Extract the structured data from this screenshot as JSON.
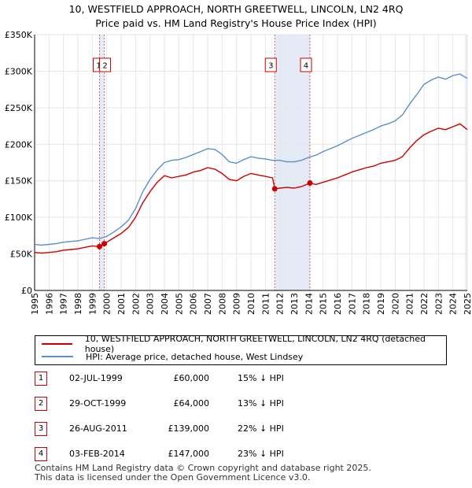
{
  "header": {
    "title_line1": "10, WESTFIELD APPROACH, NORTH GREETWELL, LINCOLN, LN2 4RQ",
    "title_line2": "Price paid vs. HM Land Registry's House Price Index (HPI)"
  },
  "chart_data": {
    "type": "line",
    "ylim": [
      0,
      350000
    ],
    "xlim": [
      1995,
      2025
    ],
    "yticks": [
      0,
      50000,
      100000,
      150000,
      200000,
      250000,
      300000,
      350000
    ],
    "ytick_labels": [
      "£0",
      "£50K",
      "£100K",
      "£150K",
      "£200K",
      "£250K",
      "£300K",
      "£350K"
    ],
    "xticks": [
      1995,
      1996,
      1997,
      1998,
      1999,
      2000,
      2001,
      2002,
      2003,
      2004,
      2005,
      2006,
      2007,
      2008,
      2009,
      2010,
      2011,
      2012,
      2013,
      2014,
      2015,
      2016,
      2017,
      2018,
      2019,
      2020,
      2021,
      2022,
      2023,
      2024,
      2025
    ],
    "grid": true,
    "colors": {
      "property": "#cc0000",
      "hpi": "#5b8fcb",
      "band": "#dde6f5",
      "marker_line": "#cc6666"
    },
    "series": [
      {
        "name": "10, WESTFIELD APPROACH, NORTH GREETWELL, LINCOLN, LN2 4RQ (detached house)",
        "x": [
          1995.0,
          1995.5,
          1996.0,
          1996.5,
          1997.0,
          1997.5,
          1998.0,
          1998.5,
          1999.0,
          1999.5,
          1999.83,
          2000.0,
          2000.5,
          2001.0,
          2001.5,
          2002.0,
          2002.5,
          2003.0,
          2003.5,
          2004.0,
          2004.5,
          2005.0,
          2005.5,
          2006.0,
          2006.5,
          2007.0,
          2007.5,
          2008.0,
          2008.5,
          2009.0,
          2009.5,
          2010.0,
          2010.5,
          2011.0,
          2011.5,
          2011.65,
          2012.0,
          2012.5,
          2013.0,
          2013.5,
          2014.09,
          2014.5,
          2015.0,
          2015.5,
          2016.0,
          2016.5,
          2017.0,
          2017.5,
          2018.0,
          2018.5,
          2019.0,
          2019.5,
          2020.0,
          2020.5,
          2021.0,
          2021.5,
          2022.0,
          2022.5,
          2023.0,
          2023.5,
          2024.0,
          2024.5,
          2025.0
        ],
        "values": [
          52000,
          51000,
          52000,
          53000,
          55000,
          56000,
          57000,
          59000,
          61000,
          60000,
          64000,
          66000,
          72000,
          78000,
          86000,
          100000,
          120000,
          135000,
          148000,
          157000,
          154000,
          156000,
          158000,
          162000,
          164000,
          168000,
          166000,
          160000,
          152000,
          150000,
          156000,
          160000,
          158000,
          156000,
          154000,
          139000,
          140000,
          141000,
          140000,
          142000,
          147000,
          145000,
          148000,
          151000,
          154000,
          158000,
          162000,
          165000,
          168000,
          170000,
          174000,
          176000,
          178000,
          183000,
          195000,
          205000,
          213000,
          218000,
          222000,
          220000,
          224000,
          228000,
          220000
        ]
      },
      {
        "name": "HPI: Average price, detached house, West Lindsey",
        "x": [
          1995.0,
          1995.5,
          1996.0,
          1996.5,
          1997.0,
          1997.5,
          1998.0,
          1998.5,
          1999.0,
          1999.5,
          2000.0,
          2000.5,
          2001.0,
          2001.5,
          2002.0,
          2002.5,
          2003.0,
          2003.5,
          2004.0,
          2004.5,
          2005.0,
          2005.5,
          2006.0,
          2006.5,
          2007.0,
          2007.5,
          2008.0,
          2008.5,
          2009.0,
          2009.5,
          2010.0,
          2010.5,
          2011.0,
          2011.5,
          2012.0,
          2012.5,
          2013.0,
          2013.5,
          2014.0,
          2014.5,
          2015.0,
          2015.5,
          2016.0,
          2016.5,
          2017.0,
          2017.5,
          2018.0,
          2018.5,
          2019.0,
          2019.5,
          2020.0,
          2020.5,
          2021.0,
          2021.5,
          2022.0,
          2022.5,
          2023.0,
          2023.5,
          2024.0,
          2024.5,
          2025.0
        ],
        "values": [
          63000,
          62000,
          63000,
          64000,
          66000,
          67000,
          68000,
          70000,
          72000,
          71000,
          74000,
          80000,
          87000,
          96000,
          112000,
          135000,
          152000,
          165000,
          175000,
          178000,
          179000,
          182000,
          186000,
          190000,
          194000,
          193000,
          186000,
          176000,
          174000,
          179000,
          183000,
          181000,
          180000,
          178000,
          178000,
          176000,
          176000,
          178000,
          182000,
          185000,
          190000,
          194000,
          198000,
          203000,
          208000,
          212000,
          216000,
          220000,
          225000,
          228000,
          232000,
          240000,
          255000,
          268000,
          282000,
          288000,
          292000,
          289000,
          294000,
          296000,
          290000
        ]
      }
    ],
    "purchases": [
      {
        "label": "1",
        "x": 1999.5,
        "value": 60000
      },
      {
        "label": "2",
        "x": 1999.83,
        "value": 64000
      },
      {
        "label": "3",
        "x": 2011.65,
        "value": 139000
      },
      {
        "label": "4",
        "x": 2014.09,
        "value": 147000
      }
    ],
    "shaded_bands": [
      [
        1999.5,
        1999.83
      ],
      [
        2011.65,
        2014.09
      ]
    ],
    "end_band_from": 2024.85
  },
  "legend": {
    "items": [
      {
        "label": "10, WESTFIELD APPROACH, NORTH GREETWELL, LINCOLN, LN2 4RQ (detached house)"
      },
      {
        "label": "HPI: Average price, detached house, West Lindsey"
      }
    ]
  },
  "sales": [
    {
      "num": "1",
      "date": "02-JUL-1999",
      "price": "£60,000",
      "hpi": "15% ↓ HPI"
    },
    {
      "num": "2",
      "date": "29-OCT-1999",
      "price": "£64,000",
      "hpi": "13% ↓ HPI"
    },
    {
      "num": "3",
      "date": "26-AUG-2011",
      "price": "£139,000",
      "hpi": "22% ↓ HPI"
    },
    {
      "num": "4",
      "date": "03-FEB-2014",
      "price": "£147,000",
      "hpi": "23% ↓ HPI"
    }
  ],
  "footer": {
    "line1": "Contains HM Land Registry data © Crown copyright and database right 2025.",
    "line2": "This data is licensed under the Open Government Licence v3.0."
  }
}
